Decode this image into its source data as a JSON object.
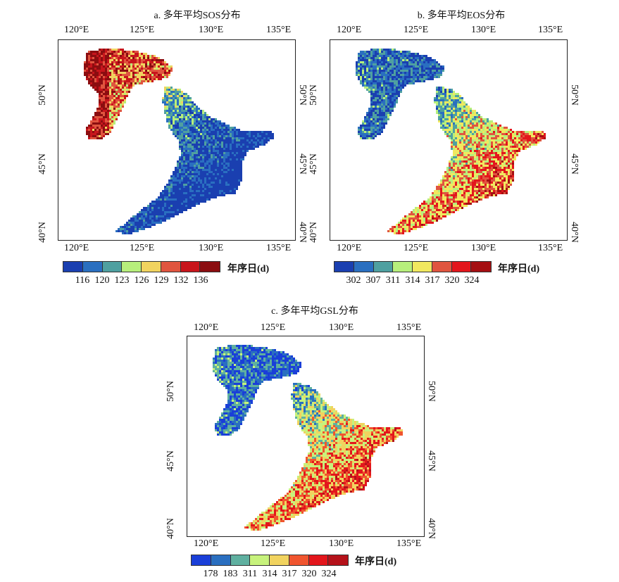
{
  "panels": [
    {
      "id": "a",
      "title": "a. 多年平均SOS分布",
      "lon_labels": [
        "120°E",
        "125°E",
        "130°E",
        "135°E"
      ],
      "lat_labels": [
        "50°N",
        "45°N",
        "40°N"
      ],
      "legend_title": "年序日(d)",
      "legend_labels": [
        "116",
        "120",
        "123",
        "126",
        "129",
        "132",
        "136"
      ],
      "legend_colors": [
        "#1a3fb0",
        "#2a6fc0",
        "#4fa0a0",
        "#b7ef7c",
        "#f1d35f",
        "#e0553f",
        "#c8151c",
        "#8b0d10"
      ],
      "pattern": "sos"
    },
    {
      "id": "b",
      "title": "b. 多年平均EOS分布",
      "lon_labels": [
        "120°E",
        "125°E",
        "130°E",
        "135°E"
      ],
      "lat_labels": [
        "50°N",
        "45°N",
        "40°N"
      ],
      "legend_title": "年序日(d)",
      "legend_labels": [
        "302",
        "307",
        "311",
        "314",
        "317",
        "320",
        "324"
      ],
      "legend_colors": [
        "#1a3fb0",
        "#2a6fc0",
        "#4fa0a0",
        "#b7ef7c",
        "#f1e85f",
        "#e0553f",
        "#e3161c",
        "#a50f12"
      ],
      "pattern": "eos"
    },
    {
      "id": "c",
      "title": "c. 多年平均GSL分布",
      "lon_labels": [
        "120°E",
        "125°E",
        "130°E",
        "135°E"
      ],
      "lat_labels": [
        "50°N",
        "45°N",
        "40°N"
      ],
      "legend_title": "年序日(d)",
      "legend_labels": [
        "178",
        "183",
        "311",
        "314",
        "317",
        "320",
        "324"
      ],
      "legend_colors": [
        "#1a3fd8",
        "#2a6fc0",
        "#5fb0a0",
        "#c7f27c",
        "#f1d35f",
        "#f0552f",
        "#e3161c",
        "#b5121a"
      ],
      "pattern": "eos"
    }
  ]
}
